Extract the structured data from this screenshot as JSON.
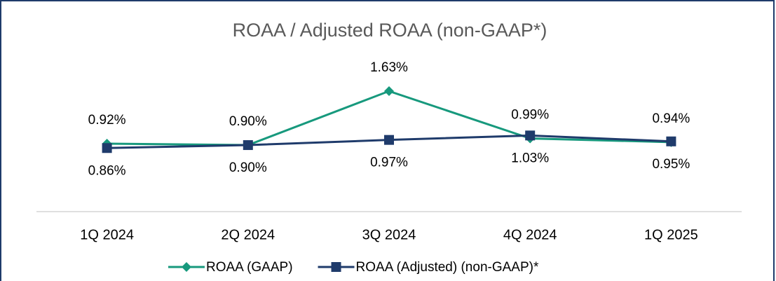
{
  "chart_data": {
    "type": "line",
    "title": "ROAA / Adjusted ROAA (non-GAAP*)",
    "categories": [
      "1Q 2024",
      "2Q 2024",
      "3Q 2024",
      "4Q 2024",
      "1Q 2025"
    ],
    "ylim": [
      0,
      2
    ],
    "series": [
      {
        "name": "ROAA (GAAP)",
        "color": "#17997d",
        "marker": "diamond",
        "values": [
          0.92,
          0.9,
          1.63,
          0.99,
          0.94
        ],
        "value_labels": [
          "0.92%",
          "0.90%",
          "1.63%",
          "0.99%",
          "0.94%"
        ]
      },
      {
        "name": "ROAA (Adjusted) (non-GAAP)*",
        "color": "#1f3b6b",
        "marker": "square",
        "values": [
          0.86,
          0.9,
          0.97,
          1.03,
          0.95
        ],
        "value_labels": [
          "0.86%",
          "0.90%",
          "0.97%",
          "1.03%",
          "0.95%"
        ]
      }
    ]
  }
}
